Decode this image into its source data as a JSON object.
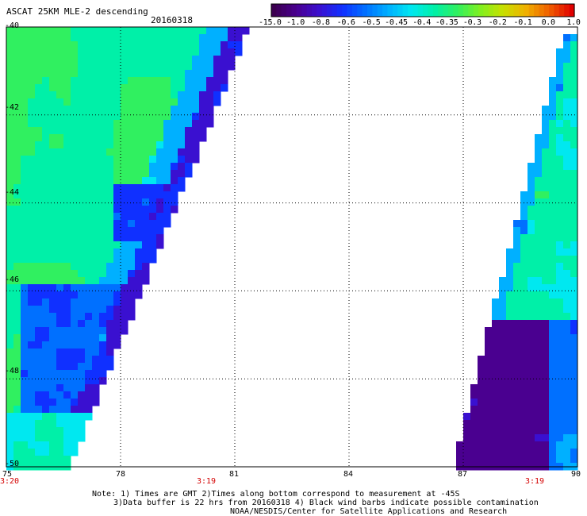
{
  "header": {
    "title": "ASCAT 25KM MLE-2 descending",
    "date": "20160318"
  },
  "colorbar": {
    "labels": [
      "-15.0",
      "-1.0",
      "-0.8",
      "-0.6",
      "-0.5",
      "-0.45",
      "-0.4",
      "-0.35",
      "-0.3",
      "-0.2",
      "-0.1",
      "0.0",
      "1.0"
    ],
    "colors": [
      "#3c0050",
      "#4a0090",
      "#3a10d0",
      "#1030ff",
      "#0070ff",
      "#00b0ff",
      "#00e8f0",
      "#00f0a8",
      "#30f060",
      "#80f020",
      "#c8e000",
      "#f0b000",
      "#f06000",
      "#e00000"
    ]
  },
  "map": {
    "lat_labels": [
      "-40",
      "-42",
      "-44",
      "-46",
      "-48",
      "-50"
    ],
    "lon_labels": [
      "75",
      "78",
      "81",
      "84",
      "87",
      "90"
    ],
    "time_labels": [
      {
        "text": "3:20",
        "lon": 75
      },
      {
        "text": "3:19",
        "lon": 81
      },
      {
        "text": "3:19",
        "lon": 88.7
      }
    ]
  },
  "footer": {
    "line1": "Note: 1) Times are GMT 2)Times along bottom correspond to measurement at -45S",
    "line2": "3)Data buffer is 22 hrs from 20160318 4) Black wind barbs indicate possible contamination",
    "line3": "NOAA/NESDIS/Center for Satellite Applications and Research"
  }
}
